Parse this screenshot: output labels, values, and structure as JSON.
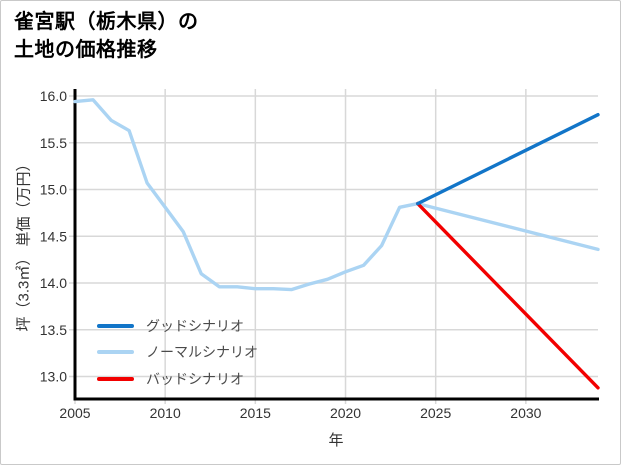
{
  "header": {
    "title_line1": "雀宮駅（栃木県）の",
    "title_line2": "土地の価格推移"
  },
  "chart_data": {
    "type": "line",
    "title": "雀宮駅（栃木県）の土地の価格推移",
    "xlabel": "年",
    "ylabel": "坪（3.3㎡） 単価（万円）",
    "x_ticks": [
      2005,
      2010,
      2015,
      2020,
      2025,
      2030
    ],
    "y_ticks": [
      "13.0",
      "13.5",
      "14.0",
      "14.5",
      "15.0",
      "15.5",
      "16.0"
    ],
    "xlim": [
      2005,
      2034
    ],
    "ylim": [
      12.76,
      16.075
    ],
    "grid": true,
    "legend_position": "lower-left-inside",
    "unit": "万円/坪",
    "series": [
      {
        "name": "グッドシナリオ",
        "color": "#1275c8",
        "x": [
          2024,
          2034
        ],
        "values": [
          14.85,
          15.8
        ]
      },
      {
        "name": "ノーマルシナリオ",
        "color": "#abd4f3",
        "x": [
          2005,
          2006,
          2007,
          2008,
          2009,
          2010,
          2011,
          2012,
          2013,
          2014,
          2015,
          2016,
          2017,
          2018,
          2019,
          2020,
          2021,
          2022,
          2023,
          2024,
          2034
        ],
        "values": [
          15.94,
          15.96,
          15.74,
          15.63,
          15.07,
          14.81,
          14.55,
          14.1,
          13.96,
          13.96,
          13.94,
          13.94,
          13.93,
          13.99,
          14.04,
          14.12,
          14.19,
          14.4,
          14.81,
          14.85,
          14.36
        ]
      },
      {
        "name": "バッドシナリオ",
        "color": "#f20000",
        "x": [
          2024,
          2034
        ],
        "values": [
          14.85,
          12.88
        ]
      }
    ],
    "draw_order": [
      1,
      2,
      0
    ],
    "colors": {
      "grid": "#d8d8d8",
      "axis": "#000000",
      "tick_label": "#333333",
      "legend_text": "#4a4a4a"
    }
  }
}
